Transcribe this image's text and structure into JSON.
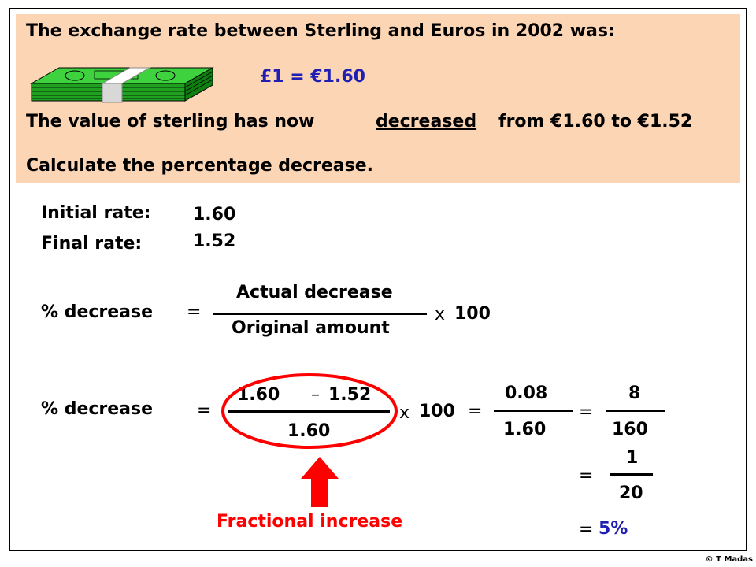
{
  "header": {
    "line1": "The exchange rate between Sterling and Euros in 2002 was:",
    "rate_eq": "£1 = €1.60",
    "line3_a": "The value of sterling has now",
    "line3_b": "decreased",
    "line3_c": "from €1.60 to €1.52",
    "line4": "Calculate the percentage decrease."
  },
  "rates": {
    "initial_label": "Initial rate:",
    "initial_value": "1.60",
    "final_label": "Final rate:",
    "final_value": "1.52"
  },
  "formula": {
    "label": "% decrease",
    "eq": "=",
    "numerator": "Actual decrease",
    "denominator": "Original amount",
    "times": "x",
    "hundred": "100"
  },
  "working": {
    "label": "% decrease",
    "eq1": "=",
    "num_a": "1.60",
    "minus": "–",
    "num_b": "1.52",
    "den": "1.60",
    "times": "x",
    "hundred": "100",
    "eq2": "=",
    "frac2_num": "0.08",
    "frac2_den": "1.60",
    "eq3": "=",
    "frac3_num": "8",
    "frac3_den": "160",
    "eq4": "=",
    "frac4_num": "1",
    "frac4_den": "20",
    "eq5": "=",
    "result": "5%"
  },
  "annotation": {
    "label": "Fractional increase"
  },
  "colors": {
    "header_bg": "#fcd5b4",
    "highlight_blue": "#1f1fb4",
    "annotation_red": "#ff0000",
    "money_green": "#1fa01f"
  },
  "icons": {
    "money": "banknote-stack-icon",
    "arrow": "arrow-up-icon"
  },
  "copyright": "© T Madas"
}
